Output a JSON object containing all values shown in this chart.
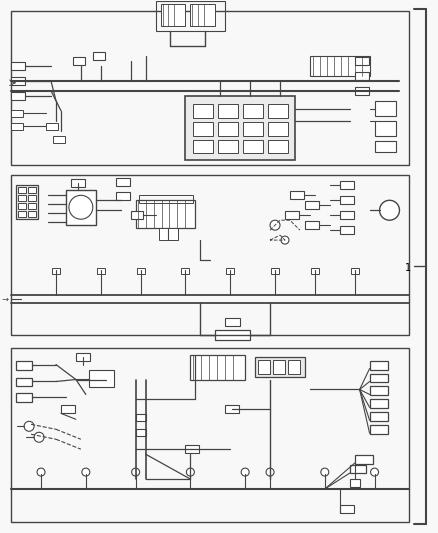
{
  "background_color": "#f0f0f0",
  "line_color": "#444444",
  "fig_width": 4.39,
  "fig_height": 5.33,
  "dpi": 100,
  "bracket_label": "1",
  "page_bg": "#f8f8f8"
}
